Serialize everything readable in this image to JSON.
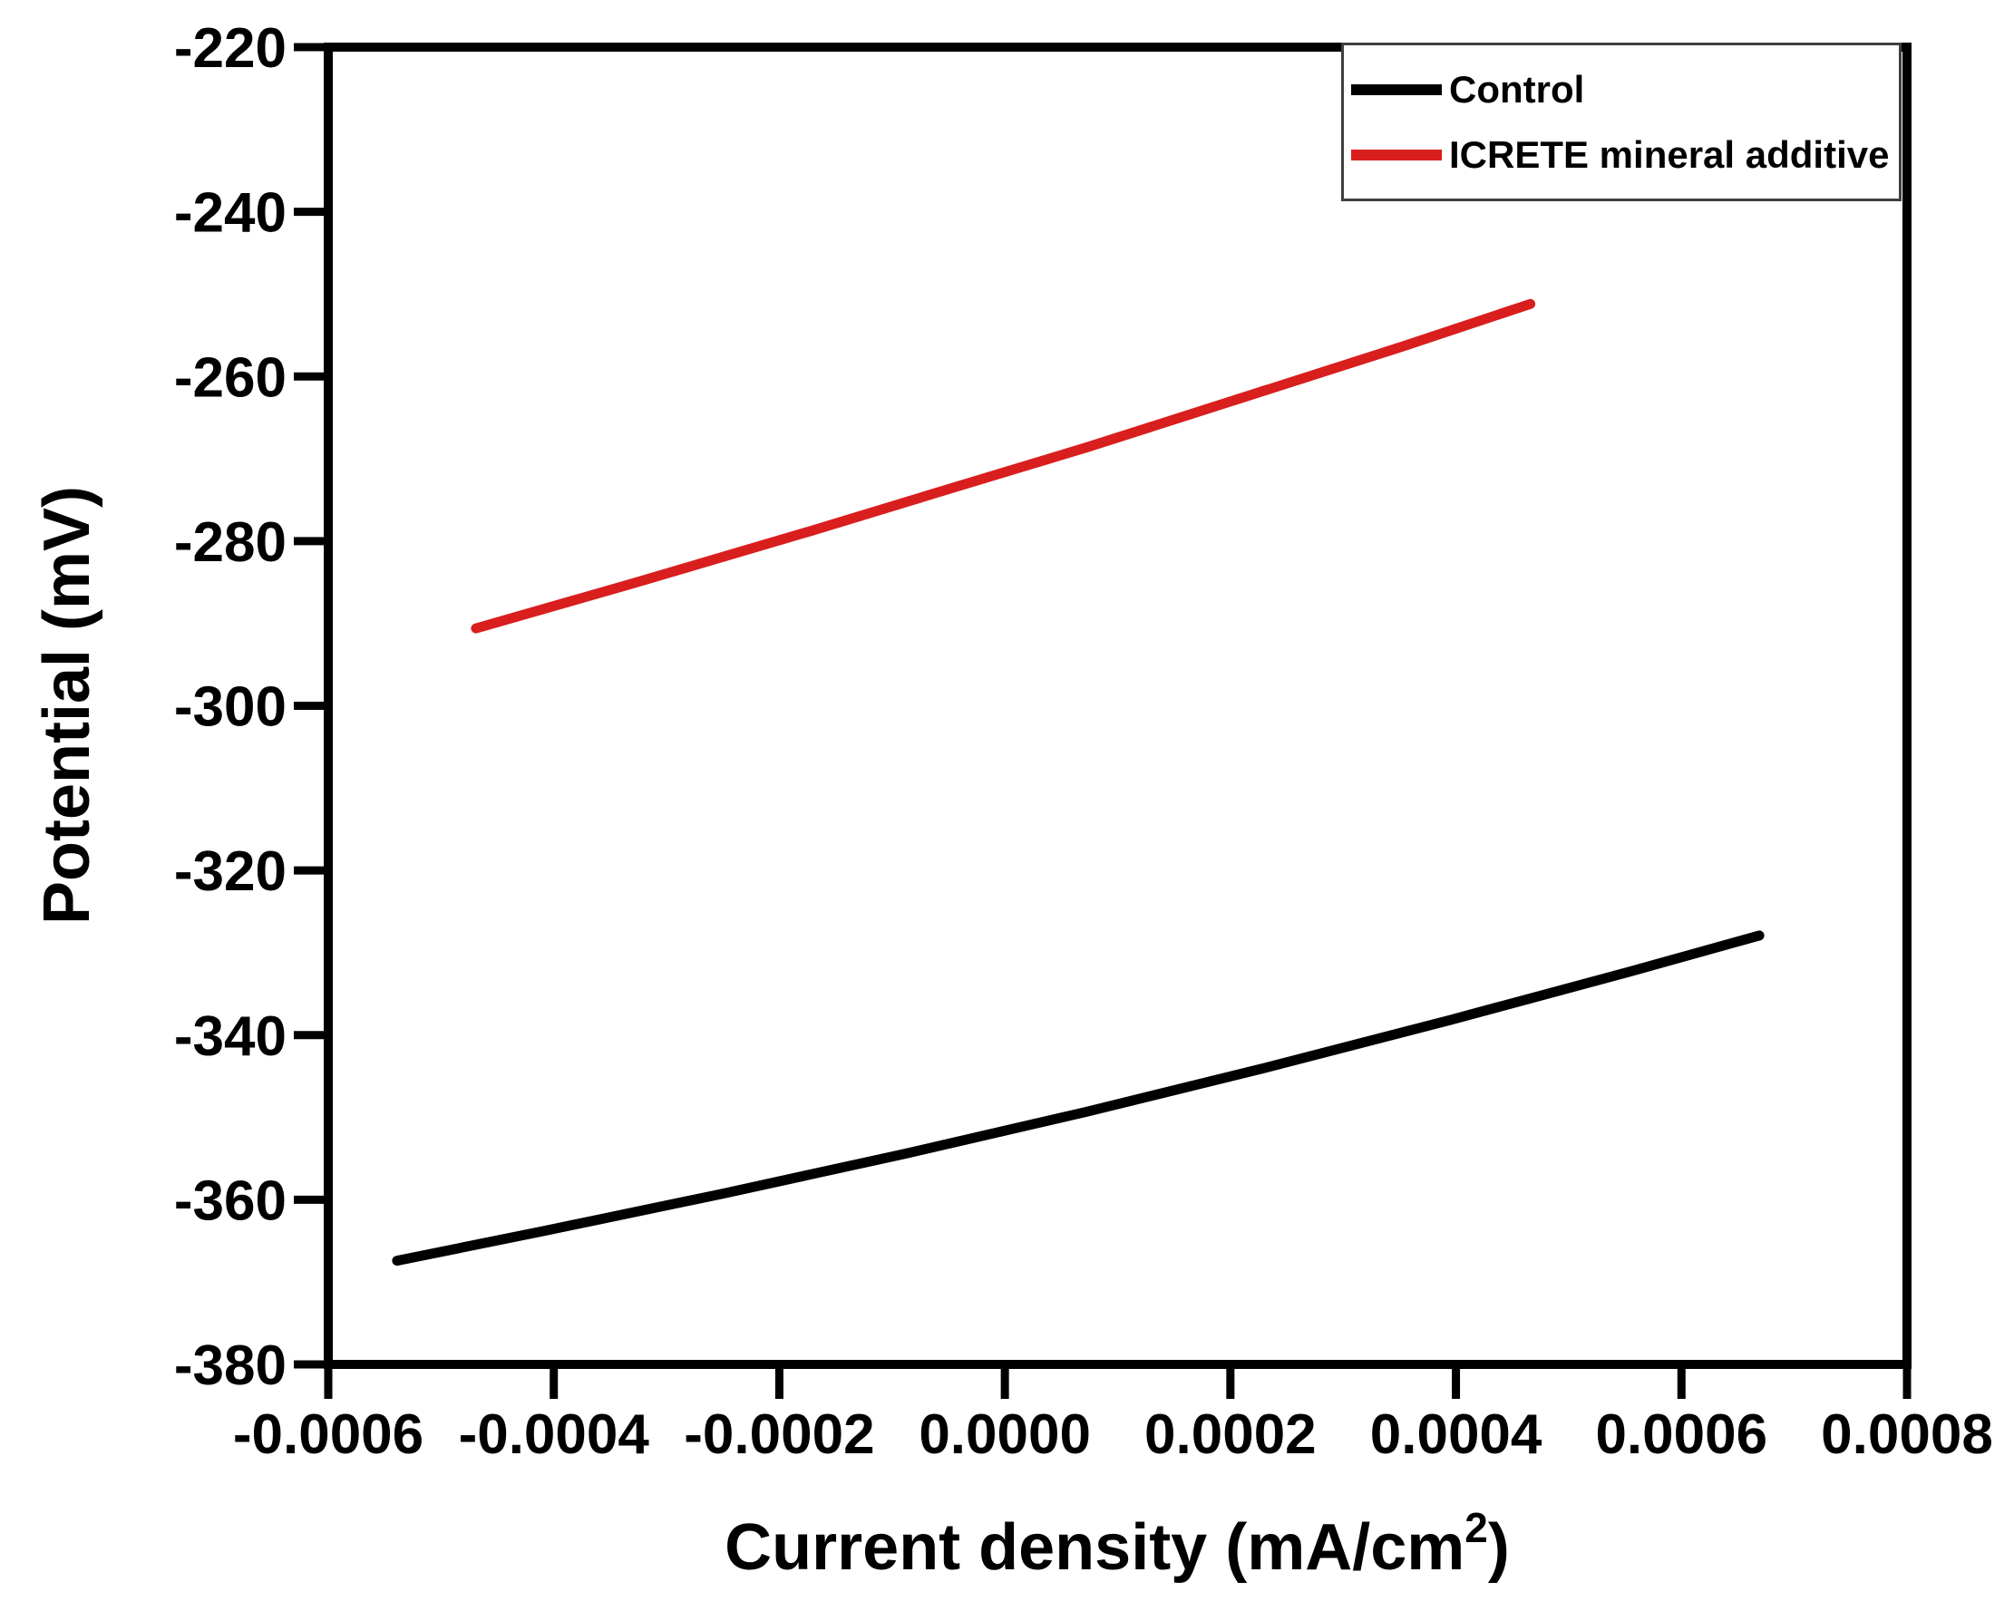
{
  "chart_data": {
    "type": "line",
    "title": "",
    "xlabel": "Current density (mA/cm²)",
    "xlabel_parts": {
      "main": "Current density (mA/cm",
      "sup": "2",
      "end": ")"
    },
    "ylabel": "Potential (mV)",
    "xlim": [
      -0.0006,
      0.0008
    ],
    "ylim": [
      -380,
      -220
    ],
    "x_tick_values": [
      -0.0006,
      -0.0004,
      -0.0002,
      0.0,
      0.0002,
      0.0004,
      0.0006,
      0.0008
    ],
    "x_tick_labels": [
      "-0.0006",
      "-0.0004",
      "-0.0002",
      "0.0000",
      "0.0002",
      "0.0004",
      "0.0006",
      "0.0008"
    ],
    "y_tick_values": [
      -220,
      -240,
      -260,
      -280,
      -300,
      -320,
      -340,
      -360,
      -380
    ],
    "y_tick_labels": [
      "-220",
      "-240",
      "-260",
      "-280",
      "-300",
      "-320",
      "-340",
      "-360",
      "-380"
    ],
    "grid": false,
    "legend_position": "top-right",
    "frame_color": "#000000",
    "series": [
      {
        "name": "Control",
        "color": "#000000",
        "points": [
          [
            -0.000539,
            -367.4
          ],
          [
            -0.000409,
            -363.8
          ],
          [
            -0.000248,
            -359.2
          ],
          [
            -8.8e-05,
            -354.4
          ],
          [
            7.3e-05,
            -349.3
          ],
          [
            0.000233,
            -343.9
          ],
          [
            0.000394,
            -338.2
          ],
          [
            0.000554,
            -332.3
          ],
          [
            0.000669,
            -327.9
          ]
        ]
      },
      {
        "name": "ICRETE mineral additive",
        "color": "#d91e1e",
        "points": [
          [
            -0.000469,
            -290.6
          ],
          [
            -0.000329,
            -285.1
          ],
          [
            -0.000168,
            -278.6
          ],
          [
            -4.8e-05,
            -273.6
          ],
          [
            7.3e-05,
            -268.6
          ],
          [
            0.000233,
            -261.6
          ],
          [
            0.000354,
            -256.3
          ],
          [
            0.000466,
            -251.2
          ]
        ]
      }
    ]
  }
}
